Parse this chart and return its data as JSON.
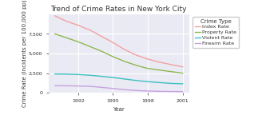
{
  "title": "Trend of Crime Rates in New York City",
  "xlabel": "Year",
  "ylabel": "Crime Rate (Incidents per 100,000 pp)",
  "years": [
    1990,
    1991,
    1992,
    1993,
    1994,
    1995,
    1996,
    1997,
    1998,
    1999,
    2000,
    2001
  ],
  "index_rate": [
    9800,
    9100,
    8600,
    8000,
    7200,
    6400,
    5500,
    4800,
    4300,
    3900,
    3600,
    3300
  ],
  "property_rate": [
    7500,
    7000,
    6500,
    5900,
    5300,
    4600,
    4000,
    3500,
    3100,
    2900,
    2700,
    2500
  ],
  "violent_rate": [
    2400,
    2380,
    2330,
    2240,
    2100,
    1950,
    1760,
    1570,
    1420,
    1310,
    1200,
    1150
  ],
  "firearm_rate": [
    900,
    900,
    870,
    830,
    700,
    550,
    400,
    300,
    230,
    190,
    170,
    160
  ],
  "index_color": "#f4a0a0",
  "property_color": "#8db84e",
  "violent_color": "#3bbfbf",
  "firearm_color": "#c8a0e0",
  "plot_bg_color": "#eaeaf4",
  "fig_bg_color": "#ffffff",
  "grid_color": "#ffffff",
  "ylim": [
    0,
    10000
  ],
  "yticks": [
    0,
    2500,
    5000,
    7500
  ],
  "xticks": [
    1992,
    1995,
    1998,
    2001
  ],
  "legend_title": "Crime Type",
  "legend_labels": [
    "Index Rate",
    "Property Rate",
    "Violent Rate",
    "Firearm Rate"
  ],
  "title_fontsize": 6.5,
  "label_fontsize": 5.0,
  "tick_fontsize": 4.5,
  "legend_fontsize": 4.5,
  "legend_title_fontsize": 5.0,
  "linewidth": 1.0
}
